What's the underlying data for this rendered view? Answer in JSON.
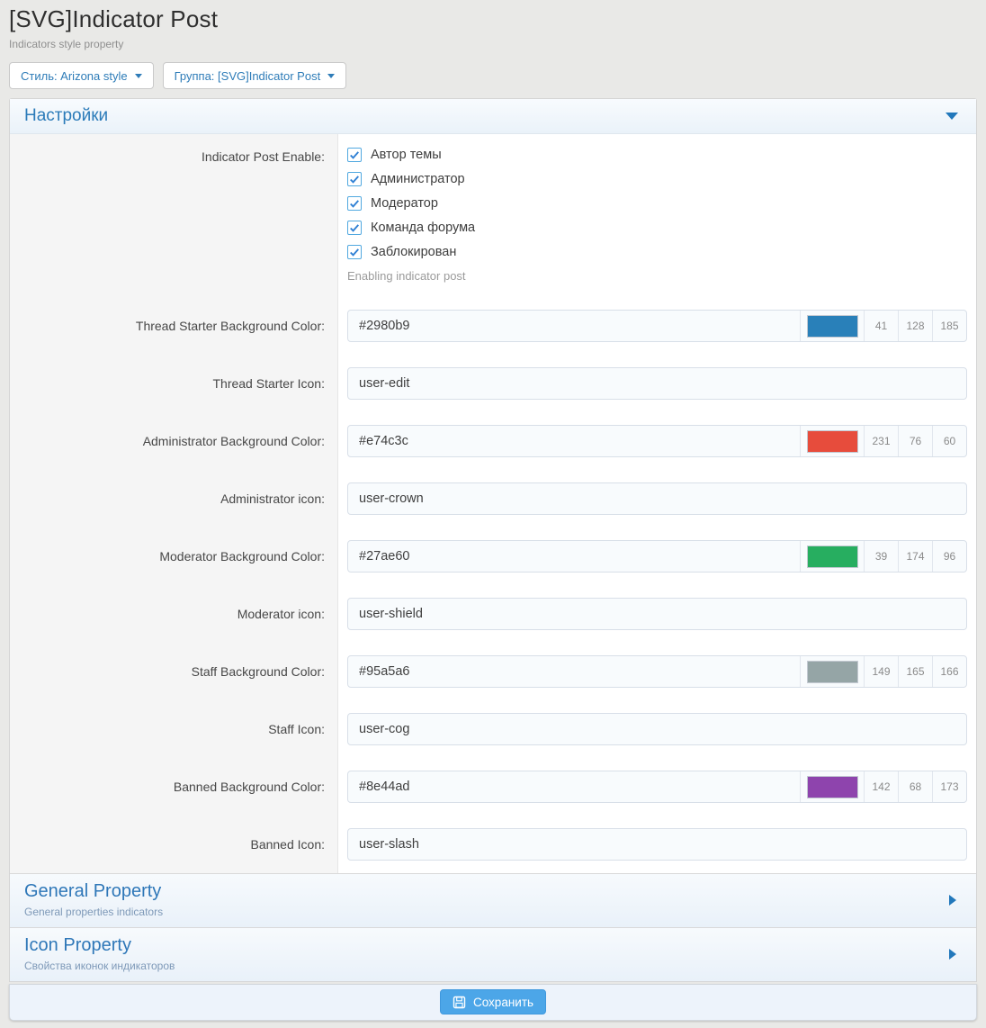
{
  "page": {
    "title": "[SVG]Indicator Post",
    "subtitle": "Indicators style property",
    "style_button": "Стиль: Arizona style",
    "group_button": "Группа: [SVG]Indicator Post"
  },
  "icons": {
    "dropdown_caret": "caret-down",
    "settings_collapse": "triangle-down",
    "panel_expand": "triangle-right",
    "checkbox_check": "check-mark",
    "save": "floppy-disk"
  },
  "settings_panel": {
    "title": "Настройки",
    "enable_row": {
      "label": "Indicator Post Enable:",
      "options": [
        "Автор темы",
        "Администратор",
        "Модератор",
        "Команда форума",
        "Заблокирован"
      ],
      "checked": [
        true,
        true,
        true,
        true,
        true
      ],
      "hint": "Enabling indicator post"
    },
    "rows": [
      {
        "type": "color",
        "name": "thread-starter-background-color",
        "label": "Thread Starter Background Color:",
        "value": "#2980b9",
        "r": "41",
        "g": "128",
        "b": "185"
      },
      {
        "type": "text",
        "name": "thread-starter-icon",
        "label": "Thread Starter Icon:",
        "value": "user-edit"
      },
      {
        "type": "color",
        "name": "administrator-background-color",
        "label": "Administrator Background Color:",
        "value": "#e74c3c",
        "r": "231",
        "g": "76",
        "b": "60"
      },
      {
        "type": "text",
        "name": "administrator-icon",
        "label": "Administrator icon:",
        "value": "user-crown"
      },
      {
        "type": "color",
        "name": "moderator-background-color",
        "label": "Moderator Background Color:",
        "value": "#27ae60",
        "r": "39",
        "g": "174",
        "b": "96"
      },
      {
        "type": "text",
        "name": "moderator-icon",
        "label": "Moderator icon:",
        "value": "user-shield"
      },
      {
        "type": "color",
        "name": "staff-background-color",
        "label": "Staff Background Color:",
        "value": "#95a5a6",
        "r": "149",
        "g": "165",
        "b": "166"
      },
      {
        "type": "text",
        "name": "staff-icon",
        "label": "Staff Icon:",
        "value": "user-cog"
      },
      {
        "type": "color",
        "name": "banned-background-color",
        "label": "Banned Background Color:",
        "value": "#8e44ad",
        "r": "142",
        "g": "68",
        "b": "173"
      },
      {
        "type": "text",
        "name": "banned-icon",
        "label": "Banned Icon:",
        "value": "user-slash"
      }
    ]
  },
  "collapsed_panels": [
    {
      "title": "General Property",
      "subtitle": "General properties indicators"
    },
    {
      "title": "Icon Property",
      "subtitle": "Свойства иконок индикаторов"
    }
  ],
  "footer": {
    "save_label": "Сохранить"
  },
  "colors": {
    "accent_blue": "#2e7cb8",
    "save_button": "#4ca6e8",
    "checkbox_border": "#52a9e0",
    "checkbox_check": "#2f80d4",
    "page_background": "#e9e9e7"
  }
}
